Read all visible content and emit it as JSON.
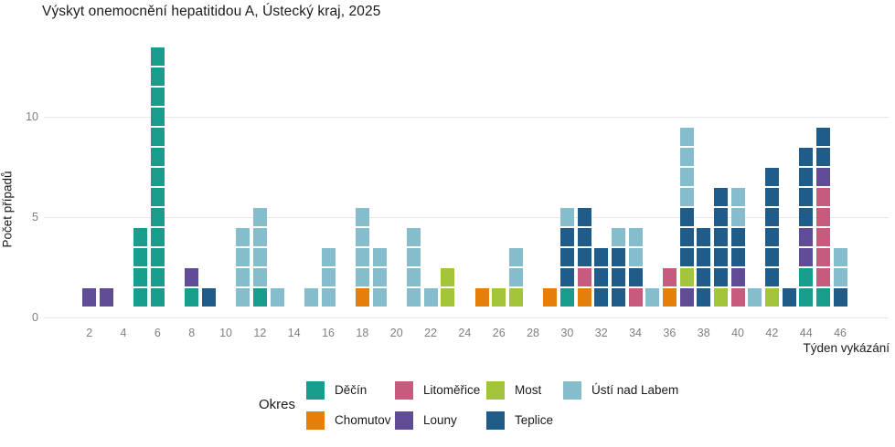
{
  "chart_data": {
    "type": "bar",
    "subtype": "stacked-unit-tiles",
    "title": "Výskyt onemocnění hepatitidou A, Ústecký kraj, 2025",
    "xlabel": "Týden vykázání",
    "ylabel": "Počet případů",
    "legend_title": "Okres",
    "y_ticks": [
      0,
      5,
      10
    ],
    "x_ticks": [
      2,
      4,
      6,
      8,
      10,
      12,
      14,
      16,
      18,
      20,
      22,
      24,
      26,
      28,
      30,
      32,
      34,
      36,
      38,
      40,
      42,
      44,
      46
    ],
    "x_range": [
      1,
      47
    ],
    "ylim": [
      0,
      13.9
    ],
    "grid": "horizontal-only",
    "legend_position": "bottom",
    "series_order": [
      "Děčín",
      "Chomutov",
      "Litoměřice",
      "Louny",
      "Most",
      "Teplice",
      "Ústí nad Labem"
    ],
    "colors": {
      "Děčín": "#1a9c8c",
      "Chomutov": "#e67e0a",
      "Litoměřice": "#c75b7e",
      "Louny": "#5f4b96",
      "Most": "#a2c53b",
      "Teplice": "#1f5c8a",
      "Ústí nad Labem": "#85bdcd"
    },
    "weeks": [
      {
        "week": 2,
        "cases": {
          "Louny": 1
        }
      },
      {
        "week": 3,
        "cases": {
          "Louny": 1
        }
      },
      {
        "week": 5,
        "cases": {
          "Děčín": 4
        }
      },
      {
        "week": 6,
        "cases": {
          "Děčín": 13
        }
      },
      {
        "week": 8,
        "cases": {
          "Děčín": 1,
          "Louny": 1
        }
      },
      {
        "week": 9,
        "cases": {
          "Teplice": 1
        }
      },
      {
        "week": 11,
        "cases": {
          "Ústí nad Labem": 4
        }
      },
      {
        "week": 12,
        "cases": {
          "Děčín": 1,
          "Ústí nad Labem": 4
        }
      },
      {
        "week": 13,
        "cases": {
          "Ústí nad Labem": 1
        }
      },
      {
        "week": 15,
        "cases": {
          "Ústí nad Labem": 1
        }
      },
      {
        "week": 16,
        "cases": {
          "Ústí nad Labem": 3
        }
      },
      {
        "week": 18,
        "cases": {
          "Chomutov": 1,
          "Ústí nad Labem": 4
        }
      },
      {
        "week": 19,
        "cases": {
          "Ústí nad Labem": 3
        }
      },
      {
        "week": 21,
        "cases": {
          "Ústí nad Labem": 4
        }
      },
      {
        "week": 22,
        "cases": {
          "Ústí nad Labem": 1
        }
      },
      {
        "week": 23,
        "cases": {
          "Most": 2
        }
      },
      {
        "week": 25,
        "cases": {
          "Chomutov": 1
        }
      },
      {
        "week": 26,
        "cases": {
          "Most": 1
        }
      },
      {
        "week": 27,
        "cases": {
          "Most": 1,
          "Ústí nad Labem": 2
        }
      },
      {
        "week": 29,
        "cases": {
          "Chomutov": 1
        }
      },
      {
        "week": 30,
        "cases": {
          "Děčín": 1,
          "Teplice": 3,
          "Ústí nad Labem": 1
        }
      },
      {
        "week": 31,
        "cases": {
          "Chomutov": 1,
          "Litoměřice": 1,
          "Teplice": 3
        }
      },
      {
        "week": 32,
        "cases": {
          "Teplice": 3
        }
      },
      {
        "week": 33,
        "cases": {
          "Teplice": 3,
          "Ústí nad Labem": 1
        }
      },
      {
        "week": 34,
        "cases": {
          "Litoměřice": 1,
          "Teplice": 1,
          "Ústí nad Labem": 2
        }
      },
      {
        "week": 35,
        "cases": {
          "Ústí nad Labem": 1
        }
      },
      {
        "week": 36,
        "cases": {
          "Chomutov": 1,
          "Litoměřice": 1
        }
      },
      {
        "week": 37,
        "cases": {
          "Louny": 1,
          "Most": 1,
          "Teplice": 3,
          "Ústí nad Labem": 4
        }
      },
      {
        "week": 38,
        "cases": {
          "Teplice": 4
        }
      },
      {
        "week": 39,
        "cases": {
          "Most": 1,
          "Teplice": 5
        }
      },
      {
        "week": 40,
        "cases": {
          "Litoměřice": 1,
          "Louny": 1,
          "Teplice": 2,
          "Ústí nad Labem": 2
        }
      },
      {
        "week": 41,
        "cases": {
          "Ústí nad Labem": 1
        }
      },
      {
        "week": 42,
        "cases": {
          "Most": 1,
          "Teplice": 6
        }
      },
      {
        "week": 43,
        "cases": {
          "Teplice": 1
        }
      },
      {
        "week": 44,
        "cases": {
          "Děčín": 2,
          "Louny": 2,
          "Teplice": 4
        }
      },
      {
        "week": 45,
        "cases": {
          "Děčín": 1,
          "Litoměřice": 5,
          "Louny": 1,
          "Teplice": 2
        }
      },
      {
        "week": 46,
        "cases": {
          "Teplice": 1,
          "Ústí nad Labem": 2
        }
      }
    ]
  }
}
